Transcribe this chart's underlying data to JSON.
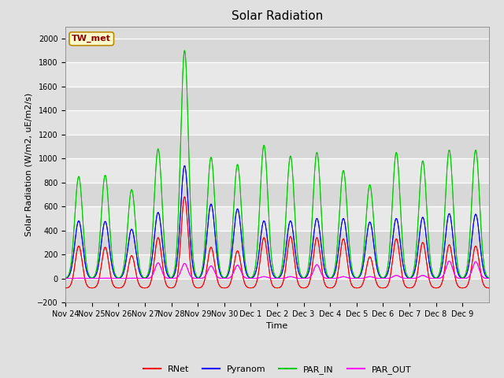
{
  "title": "Solar Radiation",
  "ylabel": "Solar Radiation (W/m2, uE/m2/s)",
  "xlabel": "Time",
  "station_label": "TW_met",
  "ylim": [
    -200,
    2100
  ],
  "yticks": [
    -200,
    0,
    200,
    400,
    600,
    800,
    1000,
    1200,
    1400,
    1600,
    1800,
    2000
  ],
  "xtick_labels": [
    "Nov 24",
    "Nov 25",
    "Nov 26",
    "Nov 27",
    "Nov 28",
    "Nov 29",
    "Nov 30",
    "Dec 1",
    "Dec 2",
    "Dec 3",
    "Dec 4",
    "Dec 5",
    "Dec 6",
    "Dec 7",
    "Dec 8",
    "Dec 9"
  ],
  "line_colors": {
    "RNet": "#ff0000",
    "Pyranom": "#0000ff",
    "PAR_IN": "#00cc00",
    "PAR_OUT": "#ff00ff"
  },
  "legend_entries": [
    "RNet",
    "Pyranom",
    "PAR_IN",
    "PAR_OUT"
  ],
  "fig_bg_color": "#e0e0e0",
  "plot_bg_color": "#dcdcdc",
  "title_fontsize": 11,
  "label_fontsize": 8,
  "tick_fontsize": 7,
  "days": 16
}
